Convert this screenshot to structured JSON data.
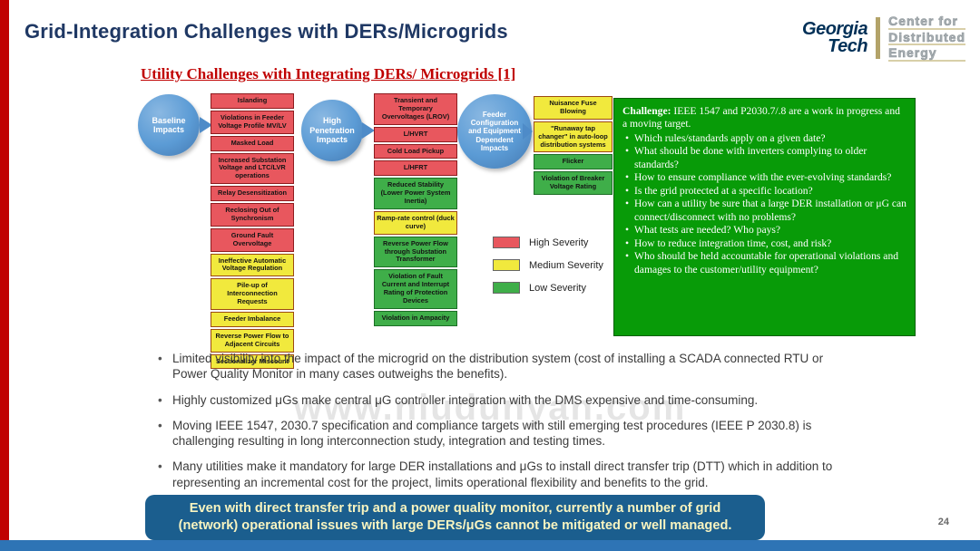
{
  "slide": {
    "title": "Grid-Integration Challenges with DERs/Microgrids",
    "subtitle": "Utility Challenges with Integrating DERs/ Microgrids [1]",
    "page_number": "24",
    "watermark": "www.niudunyan.com"
  },
  "logo": {
    "georgia": "Georgia",
    "tech": "Tech",
    "unit_lines": [
      "Center for",
      "Distributed",
      "Energy"
    ]
  },
  "colors": {
    "severity_high": "#E8575E",
    "severity_medium": "#F1E93D",
    "severity_low": "#3FAE49",
    "challenge_green": "#089B08",
    "footer_blue": "#1B5E8E",
    "accent_red": "#C00000",
    "accent_blue": "#2E74B5",
    "title_navy": "#1F3864",
    "circle_blue": "#5B9BD5"
  },
  "diagram": {
    "groups": [
      {
        "circle_label": "Baseline Impacts",
        "items": [
          {
            "label": "Islanding",
            "severity": "high"
          },
          {
            "label": "Violations in Feeder Voltage Profile MV/LV",
            "severity": "high"
          },
          {
            "label": "Masked Load",
            "severity": "high"
          },
          {
            "label": "Increased Substation Voltage and LTC/LVR operations",
            "severity": "high"
          },
          {
            "label": "Relay Desensitization",
            "severity": "high"
          },
          {
            "label": "Reclosing Out of Synchronism",
            "severity": "high"
          },
          {
            "label": "Ground Fault Overvoltage",
            "severity": "high"
          },
          {
            "label": "Ineffective Automatic Voltage Regulation",
            "severity": "medium"
          },
          {
            "label": "Pile-up of Interconnection Requests",
            "severity": "medium"
          },
          {
            "label": "Feeder Imbalance",
            "severity": "medium"
          },
          {
            "label": "Reverse Power Flow to Adjacent Circuits",
            "severity": "medium"
          },
          {
            "label": "Sectionalizer Miscount",
            "severity": "medium"
          }
        ]
      },
      {
        "circle_label": "High Penetration Impacts",
        "items": [
          {
            "label": "Transient and Temporary Overvoltages (LROV)",
            "severity": "high"
          },
          {
            "label": "L/HVRT",
            "severity": "high"
          },
          {
            "label": "Cold Load Pickup",
            "severity": "high"
          },
          {
            "label": "L/HFRT",
            "severity": "high"
          },
          {
            "label": "Reduced Stability (Lower Power System Inertia)",
            "severity": "low"
          },
          {
            "label": "Ramp-rate control (duck curve)",
            "severity": "medium"
          },
          {
            "label": "Reverse Power Flow through Substation Transformer",
            "severity": "low"
          },
          {
            "label": "Violation of Fault Current and Interrupt Rating of Protection Devices",
            "severity": "low"
          },
          {
            "label": "Violation in Ampacity",
            "severity": "low"
          }
        ]
      },
      {
        "circle_label": "Feeder Configuration and Equipment Dependent Impacts",
        "items": [
          {
            "label": "Nuisance Fuse Blowing",
            "severity": "medium"
          },
          {
            "label": "\"Runaway tap changer\" in auto-loop distribution systems",
            "severity": "medium"
          },
          {
            "label": "Flicker",
            "severity": "low"
          },
          {
            "label": "Violation of Breaker Voltage Rating",
            "severity": "low"
          }
        ]
      }
    ],
    "legend": [
      {
        "label": "High Severity",
        "severity": "high"
      },
      {
        "label": "Medium Severity",
        "severity": "medium"
      },
      {
        "label": "Low Severity",
        "severity": "low"
      }
    ]
  },
  "challenge": {
    "lead_label": "Challenge:",
    "lead_text": "IEEE 1547 and P2030.7/.8 are a work in progress and a moving target.",
    "bullets": [
      "Which rules/standards apply on a given date?",
      "What should be done with inverters complying to older standards?",
      "How to ensure compliance with the ever-evolving standards?",
      "Is the grid protected at a specific location?",
      "How can a utility be sure that a large DER installation or μG can connect/disconnect with no problems?",
      "What tests are needed? Who pays?",
      "How to reduce integration time, cost, and risk?",
      "Who should be held accountable for operational violations and damages to the customer/utility equipment?"
    ]
  },
  "notes": [
    "Limited visibility into the impact of the microgrid on the distribution system (cost of installing a SCADA connected RTU or Power Quality Monitor in many cases outweighs the benefits).",
    "Highly customized μGs make central μG controller integration with the DMS expensive and time-consuming.",
    "Moving IEEE 1547, 2030.7 specification and compliance targets with still emerging test procedures (IEEE P 2030.8) is challenging resulting in long interconnection study, integration and testing times.",
    "Many utilities make it mandatory for large DER installations and μGs to install direct transfer trip (DTT) which in addition to representing an incremental cost for the project, limits operational flexibility and benefits to the grid."
  ],
  "footer": {
    "text": "Even with direct transfer trip and a power quality monitor, currently a number of grid (network) operational issues with large DERs/μGs cannot be mitigated or well managed."
  }
}
